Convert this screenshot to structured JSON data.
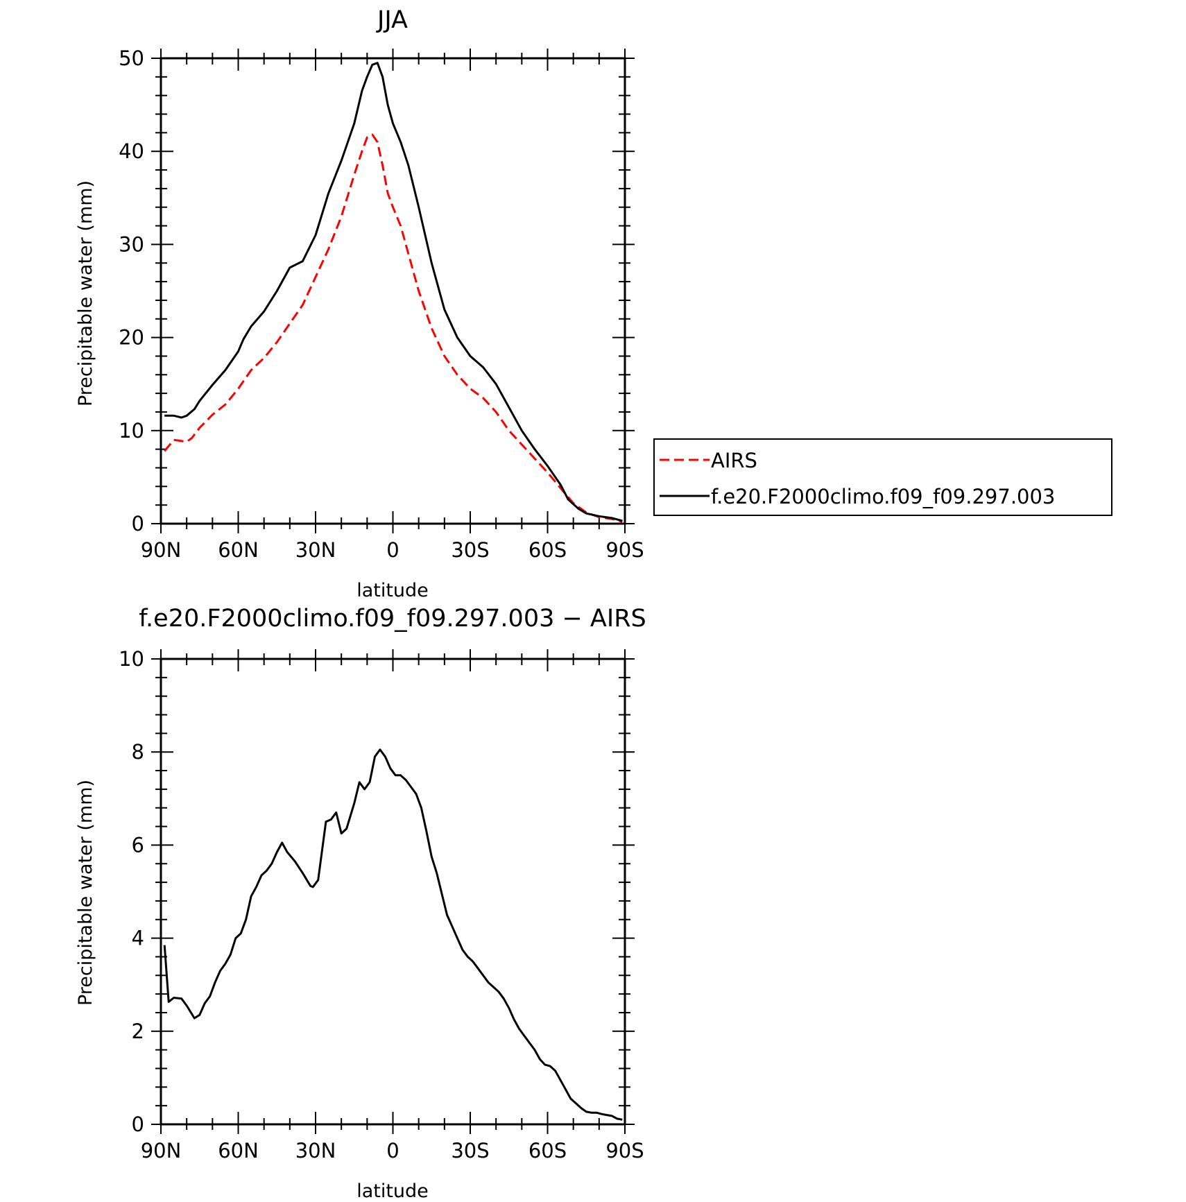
{
  "chart_data": [
    {
      "type": "line",
      "title": "JJA",
      "xlabel": "latitude",
      "ylabel": "Precipitable water (mm)",
      "xlim": [
        90,
        -90
      ],
      "ylim": [
        0,
        50
      ],
      "xticks": [
        {
          "value": 90,
          "label": "90N"
        },
        {
          "value": 60,
          "label": "60N"
        },
        {
          "value": 30,
          "label": "30N"
        },
        {
          "value": 0,
          "label": "0"
        },
        {
          "value": -30,
          "label": "30S"
        },
        {
          "value": -60,
          "label": "60S"
        },
        {
          "value": -90,
          "label": "90S"
        }
      ],
      "yticks": [
        {
          "value": 0,
          "label": "0"
        },
        {
          "value": 10,
          "label": "10"
        },
        {
          "value": 20,
          "label": "20"
        },
        {
          "value": 30,
          "label": "30"
        },
        {
          "value": 40,
          "label": "40"
        },
        {
          "value": 50,
          "label": "50"
        }
      ],
      "grid": false,
      "legend_position": "right",
      "series": [
        {
          "name": "AIRS",
          "color": "#ff0000",
          "dash": true,
          "points": [
            [
              88.6,
              7.8
            ],
            [
              85,
              9.0
            ],
            [
              80,
              8.8
            ],
            [
              78,
              9.2
            ],
            [
              75,
              10.3
            ],
            [
              70,
              11.7
            ],
            [
              65,
              12.8
            ],
            [
              60,
              14.5
            ],
            [
              55,
              16.5
            ],
            [
              50,
              17.8
            ],
            [
              45,
              19.5
            ],
            [
              40,
              21.5
            ],
            [
              35,
              23.5
            ],
            [
              30,
              26.5
            ],
            [
              25,
              29.5
            ],
            [
              20,
              33.0
            ],
            [
              15,
              37.5
            ],
            [
              12,
              40.0
            ],
            [
              10,
              41.5
            ],
            [
              8,
              41.8
            ],
            [
              6,
              41.0
            ],
            [
              4,
              38.5
            ],
            [
              2,
              35.5
            ],
            [
              0,
              34.0
            ],
            [
              -3,
              32.0
            ],
            [
              -6,
              29.0
            ],
            [
              -10,
              25.0
            ],
            [
              -15,
              21.0
            ],
            [
              -20,
              18.0
            ],
            [
              -25,
              16.0
            ],
            [
              -30,
              14.5
            ],
            [
              -35,
              13.5
            ],
            [
              -40,
              12.0
            ],
            [
              -45,
              10.0
            ],
            [
              -50,
              8.5
            ],
            [
              -55,
              7.0
            ],
            [
              -60,
              5.5
            ],
            [
              -63,
              4.5
            ],
            [
              -66,
              3.5
            ],
            [
              -70,
              2.2
            ],
            [
              -75,
              1.2
            ],
            [
              -80,
              0.7
            ],
            [
              -85,
              0.5
            ],
            [
              -89,
              0.2
            ]
          ]
        },
        {
          "name": "f.e20.F2000climo.f09_f09.297.003",
          "color": "#000000",
          "dash": false,
          "points": [
            [
              88.6,
              11.6
            ],
            [
              85,
              11.6
            ],
            [
              82,
              11.4
            ],
            [
              80,
              11.6
            ],
            [
              77,
              12.3
            ],
            [
              75,
              13.2
            ],
            [
              70,
              14.9
            ],
            [
              65,
              16.5
            ],
            [
              60,
              18.5
            ],
            [
              58,
              19.8
            ],
            [
              55,
              21.2
            ],
            [
              50,
              22.8
            ],
            [
              45,
              25.0
            ],
            [
              40,
              27.5
            ],
            [
              35,
              28.2
            ],
            [
              30,
              31.0
            ],
            [
              25,
              35.5
            ],
            [
              20,
              39.0
            ],
            [
              15,
              43.0
            ],
            [
              12,
              46.5
            ],
            [
              10,
              48.0
            ],
            [
              8,
              49.3
            ],
            [
              6,
              49.5
            ],
            [
              4,
              48.0
            ],
            [
              2,
              45.0
            ],
            [
              0,
              43.0
            ],
            [
              -3,
              41.0
            ],
            [
              -6,
              38.5
            ],
            [
              -10,
              34.0
            ],
            [
              -15,
              28.0
            ],
            [
              -20,
              23.0
            ],
            [
              -25,
              20.0
            ],
            [
              -30,
              18.0
            ],
            [
              -35,
              16.8
            ],
            [
              -40,
              15.0
            ],
            [
              -45,
              12.5
            ],
            [
              -50,
              10.0
            ],
            [
              -55,
              8.0
            ],
            [
              -60,
              6.2
            ],
            [
              -65,
              4.2
            ],
            [
              -68,
              2.6
            ],
            [
              -72,
              1.6
            ],
            [
              -75,
              1.1
            ],
            [
              -80,
              0.8
            ],
            [
              -85,
              0.6
            ],
            [
              -89,
              0.3
            ]
          ]
        }
      ]
    },
    {
      "type": "line",
      "title": "f.e20.F2000climo.f09_f09.297.003 − AIRS",
      "xlabel": "latitude",
      "ylabel": "Precipitable water (mm)",
      "xlim": [
        90,
        -90
      ],
      "ylim": [
        0,
        10
      ],
      "xticks": [
        {
          "value": 90,
          "label": "90N"
        },
        {
          "value": 60,
          "label": "60N"
        },
        {
          "value": 30,
          "label": "30N"
        },
        {
          "value": 0,
          "label": "0"
        },
        {
          "value": -30,
          "label": "30S"
        },
        {
          "value": -60,
          "label": "60S"
        },
        {
          "value": -90,
          "label": "90S"
        }
      ],
      "yticks": [
        {
          "value": 0,
          "label": "0"
        },
        {
          "value": 2,
          "label": "2"
        },
        {
          "value": 4,
          "label": "4"
        },
        {
          "value": 6,
          "label": "6"
        },
        {
          "value": 8,
          "label": "8"
        },
        {
          "value": 10,
          "label": "10"
        }
      ],
      "grid": false,
      "series": [
        {
          "color": "#000000",
          "dash": false,
          "points": [
            [
              88.6,
              3.85
            ],
            [
              87,
              2.63
            ],
            [
              85,
              2.72
            ],
            [
              82,
              2.7
            ],
            [
              80,
              2.55
            ],
            [
              77,
              2.28
            ],
            [
              75,
              2.35
            ],
            [
              73,
              2.6
            ],
            [
              71,
              2.75
            ],
            [
              69,
              3.05
            ],
            [
              67,
              3.3
            ],
            [
              65,
              3.45
            ],
            [
              63,
              3.65
            ],
            [
              61,
              4.0
            ],
            [
              59,
              4.1
            ],
            [
              57,
              4.4
            ],
            [
              55,
              4.9
            ],
            [
              53,
              5.1
            ],
            [
              51,
              5.35
            ],
            [
              49,
              5.45
            ],
            [
              47,
              5.6
            ],
            [
              45,
              5.85
            ],
            [
              43,
              6.05
            ],
            [
              41,
              5.85
            ],
            [
              38,
              5.65
            ],
            [
              35,
              5.4
            ],
            [
              32,
              5.12
            ],
            [
              31,
              5.1
            ],
            [
              29,
              5.25
            ],
            [
              26,
              6.5
            ],
            [
              24,
              6.55
            ],
            [
              22,
              6.7
            ],
            [
              20,
              6.25
            ],
            [
              18,
              6.35
            ],
            [
              15,
              6.9
            ],
            [
              13,
              7.35
            ],
            [
              11,
              7.2
            ],
            [
              9,
              7.35
            ],
            [
              7,
              7.9
            ],
            [
              5,
              8.05
            ],
            [
              3,
              7.9
            ],
            [
              1,
              7.65
            ],
            [
              -1,
              7.5
            ],
            [
              -3,
              7.5
            ],
            [
              -5,
              7.4
            ],
            [
              -7,
              7.25
            ],
            [
              -9,
              7.1
            ],
            [
              -11,
              6.8
            ],
            [
              -13,
              6.3
            ],
            [
              -15,
              5.75
            ],
            [
              -17,
              5.4
            ],
            [
              -19,
              4.95
            ],
            [
              -21,
              4.5
            ],
            [
              -23,
              4.25
            ],
            [
              -25,
              4.0
            ],
            [
              -27,
              3.75
            ],
            [
              -29,
              3.6
            ],
            [
              -31,
              3.5
            ],
            [
              -33,
              3.35
            ],
            [
              -35,
              3.2
            ],
            [
              -37,
              3.05
            ],
            [
              -39,
              2.95
            ],
            [
              -41,
              2.85
            ],
            [
              -43,
              2.7
            ],
            [
              -45,
              2.5
            ],
            [
              -47,
              2.25
            ],
            [
              -49,
              2.05
            ],
            [
              -51,
              1.9
            ],
            [
              -53,
              1.75
            ],
            [
              -55,
              1.6
            ],
            [
              -57,
              1.4
            ],
            [
              -59,
              1.28
            ],
            [
              -61,
              1.25
            ],
            [
              -63,
              1.15
            ],
            [
              -65,
              0.95
            ],
            [
              -67,
              0.75
            ],
            [
              -69,
              0.55
            ],
            [
              -71,
              0.45
            ],
            [
              -73,
              0.35
            ],
            [
              -75,
              0.27
            ],
            [
              -77,
              0.25
            ],
            [
              -79,
              0.25
            ],
            [
              -81,
              0.22
            ],
            [
              -83,
              0.2
            ],
            [
              -85,
              0.18
            ],
            [
              -87,
              0.12
            ],
            [
              -89,
              0.1
            ]
          ]
        }
      ]
    }
  ]
}
